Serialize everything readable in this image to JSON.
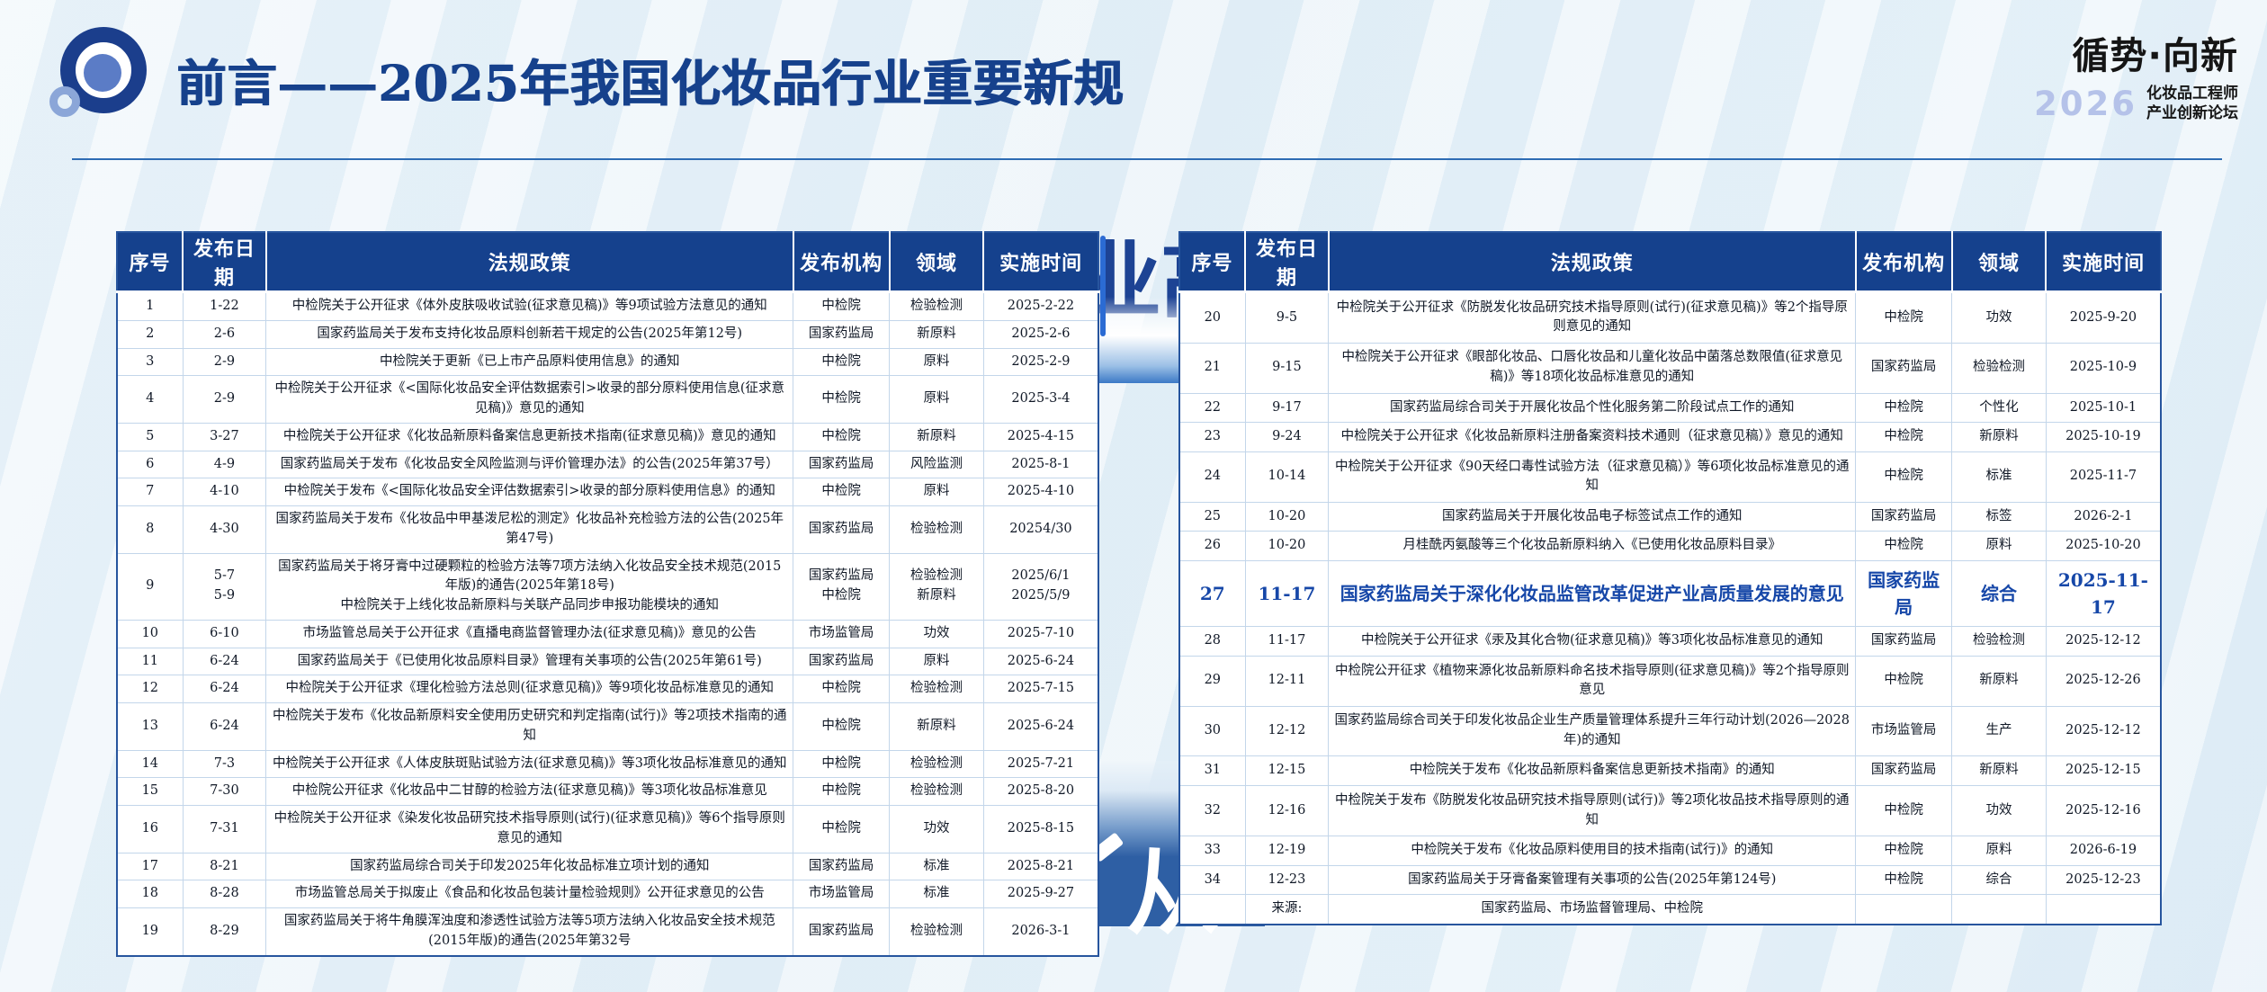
{
  "slide": {
    "title": "前言——2025年我国化妆品行业重要新规",
    "brand": {
      "main": "循势·向新",
      "year": "2026",
      "sub_line1": "化妆品工程师",
      "sub_line2": "产业创新论坛"
    },
    "background_fragments": {
      "top_text": "业高",
      "bottom_text": "从"
    },
    "colors": {
      "accent_navy": "#15418d",
      "title_blue": "#16418c",
      "highlight_blue": "#1647a8",
      "backdrop_band_blue": "#2e5fa4",
      "slide_bg": "#e8f1f8"
    }
  },
  "table_headers": [
    "序号",
    "发布日期",
    "法规政策",
    "发布机构",
    "领域",
    "实施时间"
  ],
  "left_table": {
    "rows": [
      [
        "1",
        "1-22",
        "中检院关于公开征求《体外皮肤吸收试验(征求意见稿)》等9项试验方法意见的通知",
        "中检院",
        "检验检测",
        "2025-2-22"
      ],
      [
        "2",
        "2-6",
        "国家药监局关于发布支持化妆品原料创新若干规定的公告(2025年第12号)",
        "国家药监局",
        "新原料",
        "2025-2-6"
      ],
      [
        "3",
        "2-9",
        "中检院关于更新《已上市产品原料使用信息》的通知",
        "中检院",
        "原料",
        "2025-2-9"
      ],
      [
        "4",
        "2-9",
        "中检院关于公开征求《<国际化妆品安全评估数据索引>收录的部分原料使用信息(征求意见稿)》意见的通知",
        "中检院",
        "原料",
        "2025-3-4"
      ],
      [
        "5",
        "3-27",
        "中检院关于公开征求《化妆品新原料备案信息更新技术指南(征求意见稿)》意见的通知",
        "中检院",
        "新原料",
        "2025-4-15"
      ],
      [
        "6",
        "4-9",
        "国家药监局关于发布《化妆品安全风险监测与评价管理办法》的公告(2025年第37号）",
        "国家药监局",
        "风险监测",
        "2025-8-1"
      ],
      [
        "7",
        "4-10",
        "中检院关于发布《<国际化妆品安全评估数据索引>收录的部分原料使用信息》的通知",
        "中检院",
        "原料",
        "2025-4-10"
      ],
      [
        "8",
        "4-30",
        "国家药监局关于发布《化妆品中甲基泼尼松的测定》化妆品补充检验方法的公告(2025年第47号)",
        "国家药监局",
        "检验检测",
        "20254/30"
      ],
      [
        "9",
        "5-7\n5-9",
        "国家药监局关于将牙膏中过硬颗粒的检验方法等7项方法纳入化妆品安全技术规范(2015年版)的通告(2025年第18号)\n中检院关于上线化妆品新原料与关联产品同步申报功能模块的通知",
        "国家药监局\n中检院",
        "检验检测\n新原料",
        "2025/6/1\n2025/5/9"
      ],
      [
        "10",
        "6-10",
        "市场监管总局关于公开征求《直播电商监督管理办法(征求意见稿)》意见的公告",
        "市场监管局",
        "功效",
        "2025-7-10"
      ],
      [
        "11",
        "6-24",
        "国家药监局关于《已使用化妆品原料目录》管理有关事项的公告(2025年第61号)",
        "国家药监局",
        "原料",
        "2025-6-24"
      ],
      [
        "12",
        "6-24",
        "中检院关于公开征求《理化检验方法总则(征求意见稿)》等9项化妆品标准意见的通知",
        "中检院",
        "检验检测",
        "2025-7-15"
      ],
      [
        "13",
        "6-24",
        "中检院关于发布《化妆品新原料安全使用历史研究和判定指南(试行)》等2项技术指南的通知",
        "中检院",
        "新原料",
        "2025-6-24"
      ],
      [
        "14",
        "7-3",
        "中检院关于公开征求《人体皮肤斑贴试验方法(征求意见稿)》等3项化妆品标准意见的通知",
        "中检院",
        "检验检测",
        "2025-7-21"
      ],
      [
        "15",
        "7-30",
        "中检院公开征求《化妆品中二甘醇的检验方法(征求意见稿)》等3项化妆品标准意见",
        "中检院",
        "检验检测",
        "2025-8-20"
      ],
      [
        "16",
        "7-31",
        "中检院关于公开征求《染发化妆品研究技术指导原则(试行)(征求意见稿)》等6个指导原则意见的通知",
        "中检院",
        "功效",
        "2025-8-15"
      ],
      [
        "17",
        "8-21",
        "国家药监局综合司关于印发2025年化妆品标准立项计划的通知",
        "国家药监局",
        "标准",
        "2025-8-21"
      ],
      [
        "18",
        "8-28",
        "市场监管总局关于拟废止《食品和化妆品包装计量检验规则》公开征求意见的公告",
        "市场监管局",
        "标准",
        "2025-9-27"
      ],
      [
        "19",
        "8-29",
        "国家药监局关于将牛角膜浑浊度和渗透性试验方法等5项方法纳入化妆品安全技术规范(2015年版)的通告(2025年第32号",
        "国家药监局",
        "检验检测",
        "2026-3-1"
      ]
    ]
  },
  "right_table": {
    "highlight_index": 7,
    "rows": [
      [
        "20",
        "9-5",
        "中检院关于公开征求《防脱发化妆品研究技术指导原则(试行)(征求意见稿)》等2个指导原则意见的通知",
        "中检院",
        "功效",
        "2025-9-20"
      ],
      [
        "21",
        "9-15",
        "中检院关于公开征求《眼部化妆品、口唇化妆品和儿童化妆品中菌落总数限值(征求意见稿)》等18项化妆品标准意见的通知",
        "国家药监局",
        "检验检测",
        "2025-10-9"
      ],
      [
        "22",
        "9-17",
        "国家药监局综合司关于开展化妆品个性化服务第二阶段试点工作的通知",
        "中检院",
        "个性化",
        "2025-10-1"
      ],
      [
        "23",
        "9-24",
        "中检院关于公开征求《化妆品新原料注册备案资料技术通则（征求意见稿）》意见的通知",
        "中检院",
        "新原料",
        "2025-10-19"
      ],
      [
        "24",
        "10-14",
        "中检院关于公开征求《90天经口毒性试验方法（征求意见稿）》等6项化妆品标准意见的通知",
        "中检院",
        "标准",
        "2025-11-7"
      ],
      [
        "25",
        "10-20",
        "国家药监局关于开展化妆品电子标签试点工作的通知",
        "国家药监局",
        "标签",
        "2026-2-1"
      ],
      [
        "26",
        "10-20",
        "月桂酰丙氨酸等三个化妆品新原料纳入《已使用化妆品原料目录》",
        "中检院",
        "原料",
        "2025-10-20"
      ],
      [
        "27",
        "11-17",
        "国家药监局关于深化化妆品监管改革促进产业高质量发展的意见",
        "国家药监局",
        "综合",
        "2025-11-17"
      ],
      [
        "28",
        "11-17",
        "中检院关于公开征求《汞及其化合物(征求意见稿)》等3项化妆品标准意见的通知",
        "国家药监局",
        "检验检测",
        "2025-12-12"
      ],
      [
        "29",
        "12-11",
        "中检院公开征求《植物来源化妆品新原料命名技术指导原则(征求意见稿)》等2个指导原则意见",
        "中检院",
        "新原料",
        "2025-12-26"
      ],
      [
        "30",
        "12-12",
        "国家药监局综合司关于印发化妆品企业生产质量管理体系提升三年行动计划(2026—2028年)的通知",
        "市场监管局",
        "生产",
        "2025-12-12"
      ],
      [
        "31",
        "12-15",
        "中检院关于发布《化妆品新原料备案信息更新技术指南》的通知",
        "国家药监局",
        "新原料",
        "2025-12-15"
      ],
      [
        "32",
        "12-16",
        "中检院关于发布《防脱发化妆品研究技术指导原则(试行)》等2项化妆品技术指导原则的通知",
        "中检院",
        "功效",
        "2025-12-16"
      ],
      [
        "33",
        "12-19",
        "中检院关于发布《化妆品原料使用目的技术指南(试行)》的通知",
        "中检院",
        "原料",
        "2026-6-19"
      ],
      [
        "34",
        "12-23",
        "国家药监局关于牙膏备案管理有关事项的公告(2025年第124号)",
        "中检院",
        "综合",
        "2025-12-23"
      ],
      [
        "",
        "来源:",
        "国家药监局、市场监督管理局、中检院",
        "",
        "",
        ""
      ]
    ]
  }
}
